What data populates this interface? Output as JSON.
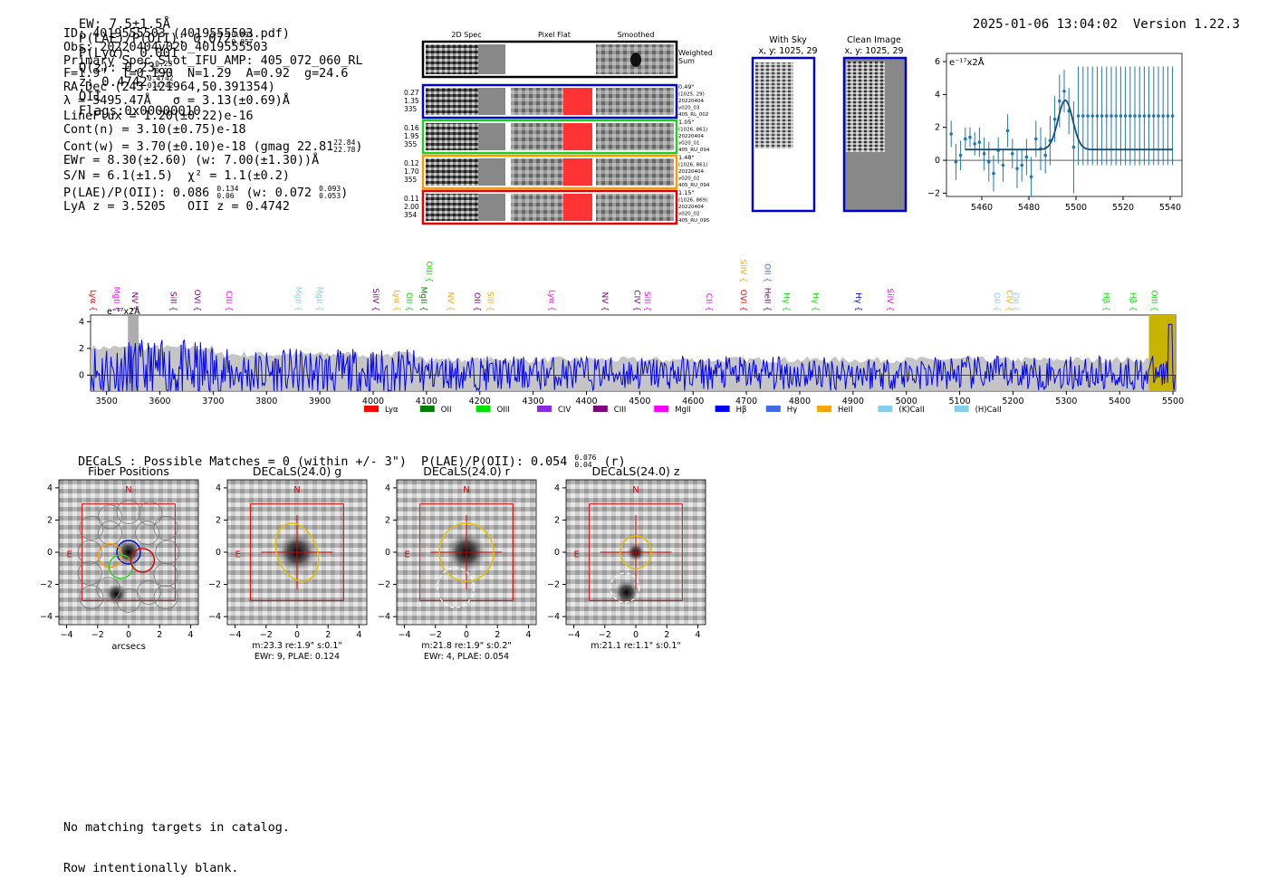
{
  "header": {
    "ew": "EW: 7.5±1.5Å",
    "plae_label": "P(LAE)/P(OII): 0.072",
    "plae_hi": "0.095",
    "plae_lo": "0.057",
    "plya": "P(Lyα): 0.001",
    "qz_label": "Q(z): 0.23",
    "qz_hi": "0.23",
    "qz_lo": "0.23",
    "z_label": "z: 0.4742",
    "z_hi": "0.4742",
    "z_lo": "0.4742",
    "z_line": "OII",
    "flags": "Flags:0x00000010",
    "datetime": "2025-01-06 13:04:02",
    "version": "Version 1.22.3"
  },
  "info": {
    "id": "ID: 4019555503 (4019555503.pdf)",
    "obs": "Obs: 20220404v020_4019555503",
    "primary": "Primary Spec_Slot_IFU_AMP: 405_072_060_RL",
    "fwhm": "F=1.9\"  T=0.190  N=1.29  A=0.92  g=24.6",
    "radec": "RA,Dec (243.121964,50.391354)",
    "lambda": "λ = 5495.47Å   σ = 3.13(±0.69)Å",
    "lineflux": "LineFlux = 1.20(±0.22)e-16",
    "contn": "Cont(n) = 3.10(±0.75)e-18",
    "contw": "Cont(w) = 3.70(±0.10)e-18 (gmag 22.81",
    "contw_hi": "22.84",
    "contw_lo": "22.78",
    "contw_end": ")",
    "ewr": "EWr = 8.30(±2.60) (w: 7.00(±1.30))Å",
    "sn": "S/N = 6.1(±1.5)  χ² = 1.1(±0.2)",
    "plae": "P(LAE)/P(OII): 0.086",
    "plae_hi": "0.134",
    "plae_lo": "0.06",
    "plae_w": "(w: 0.072",
    "plae_w_hi": "0.093",
    "plae_w_lo": "0.053",
    "plae_w_end": ")",
    "lyaz": "LyA z = 3.5205   OII z = 0.4742"
  },
  "cutouts": {
    "col_2d": "2D Spec",
    "col_flat": "Pixel Flat",
    "col_smooth": "Smoothed",
    "weighted": "Weighted",
    "sum": "Sum",
    "rows": [
      {
        "w": "0.27",
        "a": "1.35",
        "b": "335",
        "color": "#0000cc",
        "info": [
          "0.49\"",
          "(1025, 29)",
          "20220404",
          "v020_03",
          "405_RL_002"
        ]
      },
      {
        "w": "0.16",
        "a": "1.95",
        "b": "355",
        "color": "#22cc22",
        "info": [
          "1.05\"",
          "(1026, 861)",
          "20220404",
          "v020_01",
          "405_RU_094"
        ]
      },
      {
        "w": "0.12",
        "a": "1.70",
        "b": "355",
        "color": "#ff9900",
        "info": [
          "1.48\"",
          "(1026, 861)",
          "20220404",
          "v020_02",
          "405_RU_094"
        ]
      },
      {
        "w": "0.11",
        "a": "2.00",
        "b": "354",
        "color": "#dd0000",
        "info": [
          "1.15\"",
          "(1026, 869)",
          "20220404",
          "v020_02",
          "405_RU_095"
        ]
      }
    ]
  },
  "sky": {
    "with_sky": "With Sky",
    "with_sky_xy": "x, y: 1025, 29",
    "clean": "Clean Image",
    "clean_xy": "x, y: 1025, 29"
  },
  "colors": {
    "lya": "#ff0000",
    "oii": "#008000",
    "oiii": "#00e000",
    "civ": "#8a2be2",
    "ciii": "#800080",
    "mgii": "#ff00ff",
    "hb": "#0000ff",
    "hg": "#4169e1",
    "heii": "#ffa500",
    "kcai": "#87ceeb",
    "hcai": "#87ceeb",
    "spectrum": "#0000ff",
    "fit": "#1f77b4"
  },
  "chart_data": [
    {
      "type": "scatter",
      "name": "line-fit",
      "ylabel": "e⁻¹⁷x2Å",
      "xlim": [
        5445,
        5545
      ],
      "ylim": [
        -2.2,
        6.5
      ],
      "xticks": [
        5460,
        5480,
        5500,
        5520,
        5540
      ],
      "yticks": [
        -2,
        0,
        2,
        4,
        6
      ],
      "x": [
        5447,
        5449,
        5451,
        5453,
        5455,
        5457,
        5459,
        5461,
        5463,
        5465,
        5467,
        5469,
        5471,
        5473,
        5475,
        5477,
        5479,
        5481,
        5483,
        5485,
        5487,
        5489,
        5491,
        5493,
        5495,
        5497,
        5499,
        5501,
        5503,
        5505,
        5507,
        5509,
        5511,
        5513,
        5515,
        5517,
        5519,
        5521,
        5523,
        5525,
        5527,
        5529,
        5531,
        5533,
        5535,
        5537,
        5539,
        5541
      ],
      "y": [
        1.6,
        -0.1,
        0.3,
        1.3,
        1.4,
        1.0,
        1.1,
        0.4,
        -0.1,
        -0.8,
        0.6,
        -0.3,
        1.8,
        0.4,
        -0.5,
        -0.3,
        0.2,
        -1.0,
        1.3,
        0.7,
        0.3,
        1.2,
        2.5,
        3.6,
        4.2,
        3.0,
        0.8,
        2.7,
        2.7,
        2.7,
        2.7,
        2.7,
        2.7,
        2.7,
        2.7,
        2.7,
        2.7,
        2.7,
        2.7,
        2.7,
        2.7,
        2.7,
        2.7,
        2.7,
        2.7,
        2.7,
        2.7,
        2.7
      ],
      "yerr": [
        0.8,
        1.1,
        0.9,
        0.7,
        0.6,
        0.7,
        0.9,
        1.0,
        1.2,
        1.1,
        0.8,
        1.0,
        1.0,
        0.9,
        1.2,
        1.0,
        1.1,
        1.2,
        1.1,
        1.3,
        1.1,
        1.5,
        1.4,
        1.6,
        1.3,
        1.4,
        2.8,
        3.0,
        3.0,
        3.0,
        3.0,
        3.0,
        3.0,
        3.0,
        3.0,
        3.0,
        3.0,
        3.0,
        3.0,
        3.0,
        3.0,
        3.0,
        3.0,
        3.0,
        3.0,
        3.0,
        3.0,
        3.0
      ],
      "fit": {
        "continuum": 0.65,
        "amplitude": 3.0,
        "center": 5495.47,
        "sigma": 3.13
      }
    },
    {
      "type": "line",
      "name": "full-spectrum",
      "ylabel": "e⁻¹⁷x2Å",
      "xlim": [
        3470,
        5505
      ],
      "ylim": [
        -1.2,
        4.5
      ],
      "xticks": [
        3500,
        3600,
        3700,
        3800,
        3900,
        4000,
        4100,
        4200,
        4300,
        4400,
        4500,
        4600,
        4700,
        4800,
        4900,
        5000,
        5100,
        5200,
        5300,
        5400,
        5500
      ],
      "yticks": [
        0,
        2,
        4
      ],
      "line_markers": [
        {
          "label": "Lyα",
          "x": 3470,
          "color": "lya",
          "row": 0
        },
        {
          "label": "MgII",
          "x": 3514,
          "color": "mgii",
          "row": 0
        },
        {
          "label": "NV",
          "x": 3548,
          "color": "ciii",
          "row": 0
        },
        {
          "label": "SiII",
          "x": 3620,
          "color": "ciii",
          "row": 0
        },
        {
          "label": "OVI",
          "x": 3665,
          "color": "ciii",
          "row": 0
        },
        {
          "label": "CIII",
          "x": 3725,
          "color": "mgii",
          "row": 0
        },
        {
          "label": "MgII",
          "x": 3855,
          "color": "kcai",
          "row": 0
        },
        {
          "label": "MgII",
          "x": 3895,
          "color": "kcai",
          "row": 0
        },
        {
          "label": "SiIV",
          "x": 4000,
          "color": "ciii",
          "row": 0
        },
        {
          "label": "Lyα",
          "x": 4040,
          "color": "heii",
          "row": 0
        },
        {
          "label": "OII",
          "x": 4063,
          "color": "oiii",
          "row": 0
        },
        {
          "label": "MgII",
          "x": 4090,
          "color": "oii",
          "row": 0
        },
        {
          "label": "OIII",
          "x": 4100,
          "color": "oiii",
          "row": 1
        },
        {
          "label": "NV",
          "x": 4140,
          "color": "heii",
          "row": 0
        },
        {
          "label": "OII",
          "x": 4190,
          "color": "ciii",
          "row": 0
        },
        {
          "label": "SiII",
          "x": 4215,
          "color": "heii",
          "row": 0
        },
        {
          "label": "Lyα",
          "x": 4330,
          "color": "mgii",
          "row": 0
        },
        {
          "label": "NV",
          "x": 4430,
          "color": "ciii",
          "row": 0
        },
        {
          "label": "CIV",
          "x": 4490,
          "color": "ciii",
          "row": 0
        },
        {
          "label": "SiII",
          "x": 4510,
          "color": "mgii",
          "row": 0
        },
        {
          "label": "CII",
          "x": 4625,
          "color": "mgii",
          "row": 0
        },
        {
          "label": "OVI",
          "x": 4690,
          "color": "lya",
          "row": 0
        },
        {
          "label": "SiIV",
          "x": 4690,
          "color": "heii",
          "row": 1
        },
        {
          "label": "HeII",
          "x": 4735,
          "color": "ciii",
          "row": 0
        },
        {
          "label": "OII",
          "x": 4735,
          "color": "hg",
          "row": 1
        },
        {
          "label": "Hγ",
          "x": 4770,
          "color": "oiii",
          "row": 0
        },
        {
          "label": "Hγ",
          "x": 4825,
          "color": "oiii",
          "row": 0
        },
        {
          "label": "Hγ",
          "x": 4905,
          "color": "hb",
          "row": 0
        },
        {
          "label": "SiIV",
          "x": 4965,
          "color": "mgii",
          "row": 0
        },
        {
          "label": "OII",
          "x": 5165,
          "color": "kcai",
          "row": 0
        },
        {
          "label": "CIV",
          "x": 5188,
          "color": "heii",
          "row": 0
        },
        {
          "label": "OII",
          "x": 5200,
          "color": "kcai",
          "row": 0
        },
        {
          "label": "Hβ",
          "x": 5370,
          "color": "oiii",
          "row": 0
        },
        {
          "label": "Hβ",
          "x": 5420,
          "color": "oiii",
          "row": 0
        },
        {
          "label": "OIII",
          "x": 5460,
          "color": "oiii",
          "row": 0
        }
      ],
      "legend": [
        {
          "label": "Lyα",
          "color": "lya"
        },
        {
          "label": "OII",
          "color": "oii"
        },
        {
          "label": "OIII",
          "color": "oiii"
        },
        {
          "label": "CIV",
          "color": "civ"
        },
        {
          "label": "CIII",
          "color": "ciii"
        },
        {
          "label": "MgII",
          "color": "mgii"
        },
        {
          "label": "Hβ",
          "color": "hb"
        },
        {
          "label": "Hγ",
          "color": "hg"
        },
        {
          "label": "HeII",
          "color": "heii"
        },
        {
          "label": "(K)CaII",
          "color": "kcai"
        },
        {
          "label": "(H)CaII",
          "color": "hcai"
        }
      ]
    },
    {
      "type": "heatmap",
      "name": "imaging-panels",
      "xlim": [
        -4.5,
        4.5
      ],
      "ylim": [
        -4.5,
        4.5
      ],
      "xticks": [
        -4,
        -2,
        0,
        2,
        4
      ],
      "yticks": [
        4,
        2,
        0,
        -2,
        -4
      ],
      "panels": [
        {
          "title": "Fiber Positions",
          "xlabel": "arcsecs",
          "caption": []
        },
        {
          "title": "DECaLS(24.0) g",
          "xlabel": "",
          "caption": [
            "m:23.3  re:1.9\"  s:0.1\"",
            "EWr: 9, PLAE: 0.124"
          ]
        },
        {
          "title": "DECaLS(24.0) r",
          "xlabel": "",
          "caption": [
            "m:21.8  re:1.9\"  s:0.2\"",
            "EWr: 4, PLAE: 0.054"
          ]
        },
        {
          "title": "DECaLS(24.0) z",
          "xlabel": "",
          "caption": [
            "m:21.1  re:1.1\"  s:0.1\""
          ]
        }
      ],
      "compass_n": "N",
      "compass_e": "E"
    }
  ],
  "decals": {
    "header": "DECaLS : Possible Matches = 0 (within +/- 3\")  P(LAE)/P(OII): 0.054",
    "hi": "0.076",
    "lo": "0.04",
    "end": "(r)"
  },
  "footer": {
    "line1": "No matching targets in catalog.",
    "line2": "Row intentionally blank."
  }
}
